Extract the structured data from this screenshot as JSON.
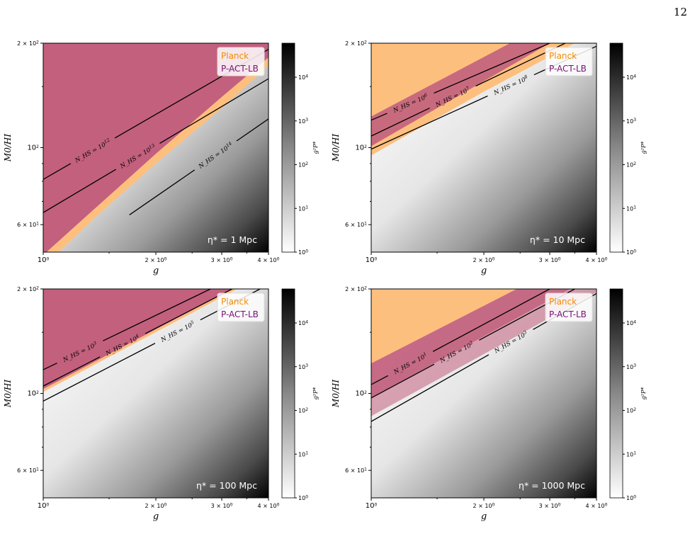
{
  "page": {
    "number": "12"
  },
  "colors": {
    "planck": "#f5a041",
    "planck_fill": "#fdbf7e",
    "pact": "#b4365e",
    "pact_fill": "#c2607e",
    "colormap": "Greys",
    "contour": "#000000"
  },
  "chart_data": [
    {
      "type": "heatmap",
      "panel": "top-left",
      "eta_label": "η* = 1 Mpc",
      "xlabel": "g",
      "ylabel": "M0/HI",
      "xscale": "log",
      "yscale": "log",
      "xlim": [
        1,
        4
      ],
      "ylim": [
        50,
        200
      ],
      "x_ticks": [
        "10^0",
        "2 × 10^0",
        "3 × 10^0",
        "4 × 10^0"
      ],
      "y_ticks": [
        "6 × 10^1",
        "10^2",
        "2 × 10^2"
      ],
      "colorbar": {
        "label": "g²P*",
        "scale": "log",
        "range": [
          1,
          60000
        ],
        "ticks": [
          "10^0",
          "10^1",
          "10^2",
          "10^3",
          "10^4"
        ]
      },
      "legend": {
        "position": "top-right",
        "entries": [
          "Planck",
          "P-ACT-LB"
        ]
      },
      "region_fill_order": "pact_over_planck",
      "contours": [
        {
          "label": "N_HS = 10^12",
          "line": [
            [
              1.0,
              81
            ],
            [
              4.0,
              192
            ]
          ]
        },
        {
          "label": "N_HS = 10^13",
          "line": [
            [
              1.0,
              65
            ],
            [
              4.0,
              158
            ]
          ]
        },
        {
          "label": "N_HS = 10^14",
          "line": [
            [
              1.7,
              64
            ],
            [
              4.0,
              121
            ]
          ]
        }
      ],
      "regions": {
        "planck_lower_boundary": [
          [
            1.1,
            50
          ],
          [
            1.4,
            64
          ],
          [
            2.0,
            90
          ],
          [
            3.0,
            130
          ],
          [
            4.0,
            172
          ]
        ],
        "pact_lower_boundary": [
          [
            1.02,
            50
          ],
          [
            1.4,
            68
          ],
          [
            2.0,
            96
          ],
          [
            3.0,
            140
          ],
          [
            4.0,
            182
          ]
        ]
      }
    },
    {
      "type": "heatmap",
      "panel": "top-right",
      "eta_label": "η* = 10 Mpc",
      "xlabel": "g",
      "ylabel": "M0/HI",
      "xscale": "log",
      "yscale": "log",
      "xlim": [
        1,
        4
      ],
      "ylim": [
        50,
        200
      ],
      "x_ticks": [
        "10^0",
        "2 × 10^0",
        "3 × 10^0",
        "4 × 10^0"
      ],
      "y_ticks": [
        "6 × 10^1",
        "10^2",
        "2 × 10^2"
      ],
      "colorbar": {
        "label": "g²P*",
        "scale": "log",
        "range": [
          1,
          60000
        ],
        "ticks": [
          "10^0",
          "10^1",
          "10^2",
          "10^3",
          "10^4"
        ]
      },
      "legend": {
        "position": "top-right",
        "entries": [
          "Planck",
          "P-ACT-LB"
        ]
      },
      "region_fill_order": "pact_over_planck",
      "contours": [
        {
          "label": "N_HS = 10^6",
          "line": [
            [
              1.0,
              120
            ],
            [
              3.0,
              200
            ]
          ]
        },
        {
          "label": "N_HS = 10^7",
          "line": [
            [
              1.0,
              108
            ],
            [
              3.3,
              200
            ]
          ]
        },
        {
          "label": "N_HS = 10^8",
          "line": [
            [
              1.0,
              99
            ],
            [
              4.0,
              196
            ]
          ]
        }
      ],
      "regions": {
        "planck_lower_boundary": [
          [
            1.0,
            95
          ],
          [
            2.0,
            145
          ],
          [
            3.5,
            200
          ]
        ],
        "pact_band": [
          [
            1.0,
            101
          ],
          [
            3.0,
            200
          ],
          [
            1.0,
            123
          ],
          [
            2.35,
            200
          ]
        ]
      }
    },
    {
      "type": "heatmap",
      "panel": "bottom-left",
      "eta_label": "η* = 100 Mpc",
      "xlabel": "g",
      "ylabel": "M0/HI",
      "xscale": "log",
      "yscale": "log",
      "xlim": [
        1,
        4
      ],
      "ylim": [
        50,
        200
      ],
      "x_ticks": [
        "10^0",
        "2 × 10^0",
        "3 × 10^0",
        "4 × 10^0"
      ],
      "y_ticks": [
        "6 × 10^1",
        "10^2",
        "2 × 10^2"
      ],
      "colorbar": {
        "label": "g²P*",
        "scale": "log",
        "range": [
          1,
          60000
        ],
        "ticks": [
          "10^0",
          "10^1",
          "10^2",
          "10^3",
          "10^4"
        ]
      },
      "legend": {
        "position": "top-right",
        "entries": [
          "Planck",
          "P-ACT-LB"
        ]
      },
      "region_fill_order": "pact_over_planck",
      "contours": [
        {
          "label": "N_HS = 10^3",
          "line": [
            [
              1.0,
              117
            ],
            [
              2.8,
              200
            ]
          ]
        },
        {
          "label": "N_HS = 10^4",
          "line": [
            [
              1.0,
              105
            ],
            [
              3.2,
              200
            ]
          ]
        },
        {
          "label": "N_HS = 10^5",
          "line": [
            [
              1.0,
              95
            ],
            [
              3.8,
              200
            ]
          ]
        }
      ],
      "regions": {
        "planck_lower_boundary": [
          [
            1.0,
            101
          ],
          [
            3.3,
            200
          ]
        ],
        "pact_lower_boundary": [
          [
            1.0,
            103
          ],
          [
            3.2,
            200
          ]
        ]
      }
    },
    {
      "type": "heatmap",
      "panel": "bottom-right",
      "eta_label": "η* = 1000 Mpc",
      "xlabel": "g",
      "ylabel": "M0/HI",
      "xscale": "log",
      "yscale": "log",
      "xlim": [
        1,
        4
      ],
      "ylim": [
        50,
        200
      ],
      "x_ticks": [
        "10^0",
        "2 × 10^0",
        "3 × 10^0",
        "4 × 10^0"
      ],
      "y_ticks": [
        "6 × 10^1",
        "10^2",
        "2 × 10^2"
      ],
      "colorbar": {
        "label": "g²P*",
        "scale": "log",
        "range": [
          1,
          60000
        ],
        "ticks": [
          "10^0",
          "10^1",
          "10^2",
          "10^3",
          "10^4"
        ]
      },
      "legend": {
        "position": "top-right",
        "entries": [
          "Planck",
          "P-ACT-LB"
        ]
      },
      "region_fill_order": "planck_over_pact",
      "contours": [
        {
          "label": "N_HS = 10^1",
          "line": [
            [
              1.0,
              106
            ],
            [
              3.0,
              200
            ]
          ]
        },
        {
          "label": "N_HS = 10^2",
          "line": [
            [
              1.0,
              97
            ],
            [
              3.5,
              200
            ]
          ]
        },
        {
          "label": "N_HS = 10^3",
          "line": [
            [
              1.0,
              83
            ],
            [
              4.0,
              194
            ]
          ]
        }
      ],
      "regions": {
        "planck_lower_boundary": [
          [
            1.0,
            97
          ],
          [
            3.4,
            200
          ]
        ],
        "pact_lower_boundary": [
          [
            1.0,
            86
          ],
          [
            4.0,
            196
          ]
        ]
      }
    }
  ]
}
